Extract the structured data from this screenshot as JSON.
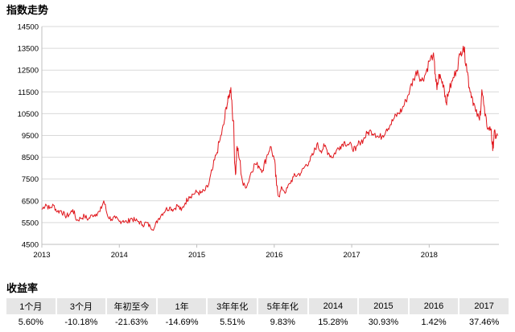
{
  "chart_data": {
    "type": "line",
    "title": "指数走势",
    "xlabel": "",
    "ylabel": "",
    "ylim": [
      4500,
      14500
    ],
    "yticks": [
      4500,
      5500,
      6500,
      7500,
      8500,
      9500,
      10500,
      11500,
      12500,
      13500,
      14500
    ],
    "xlim": [
      2013.0,
      2018.9
    ],
    "xticks": [
      "2013",
      "2014",
      "2015",
      "2016",
      "2017",
      "2018"
    ],
    "line_color": "#e0161c",
    "grid": true,
    "series": [
      {
        "points": [
          [
            2013.0,
            6100
          ],
          [
            2013.05,
            6350
          ],
          [
            2013.1,
            6150
          ],
          [
            2013.15,
            6300
          ],
          [
            2013.2,
            6000
          ],
          [
            2013.25,
            6050
          ],
          [
            2013.3,
            5800
          ],
          [
            2013.35,
            5850
          ],
          [
            2013.4,
            6100
          ],
          [
            2013.45,
            5600
          ],
          [
            2013.5,
            5700
          ],
          [
            2013.55,
            5800
          ],
          [
            2013.6,
            5650
          ],
          [
            2013.65,
            5850
          ],
          [
            2013.7,
            5900
          ],
          [
            2013.75,
            6000
          ],
          [
            2013.8,
            6500
          ],
          [
            2013.85,
            5800
          ],
          [
            2013.9,
            5650
          ],
          [
            2013.95,
            5700
          ],
          [
            2014.0,
            5550
          ],
          [
            2014.05,
            5600
          ],
          [
            2014.1,
            5500
          ],
          [
            2014.15,
            5700
          ],
          [
            2014.2,
            5600
          ],
          [
            2014.25,
            5550
          ],
          [
            2014.3,
            5400
          ],
          [
            2014.35,
            5500
          ],
          [
            2014.4,
            5300
          ],
          [
            2014.45,
            5250
          ],
          [
            2014.5,
            5650
          ],
          [
            2014.55,
            5900
          ],
          [
            2014.6,
            6100
          ],
          [
            2014.65,
            6200
          ],
          [
            2014.7,
            6100
          ],
          [
            2014.75,
            6300
          ],
          [
            2014.8,
            6050
          ],
          [
            2014.85,
            6400
          ],
          [
            2014.9,
            6700
          ],
          [
            2014.95,
            6800
          ],
          [
            2015.0,
            6900
          ],
          [
            2015.05,
            6850
          ],
          [
            2015.1,
            6950
          ],
          [
            2015.15,
            7200
          ],
          [
            2015.2,
            7900
          ],
          [
            2015.25,
            8600
          ],
          [
            2015.3,
            9300
          ],
          [
            2015.35,
            10000
          ],
          [
            2015.38,
            10800
          ],
          [
            2015.41,
            11200
          ],
          [
            2015.44,
            11700
          ],
          [
            2015.47,
            10200
          ],
          [
            2015.5,
            7700
          ],
          [
            2015.52,
            9000
          ],
          [
            2015.55,
            8400
          ],
          [
            2015.6,
            7200
          ],
          [
            2015.65,
            7200
          ],
          [
            2015.7,
            7800
          ],
          [
            2015.75,
            8200
          ],
          [
            2015.8,
            8100
          ],
          [
            2015.85,
            7900
          ],
          [
            2015.9,
            8500
          ],
          [
            2015.95,
            9000
          ],
          [
            2016.0,
            8400
          ],
          [
            2016.03,
            7200
          ],
          [
            2016.06,
            6700
          ],
          [
            2016.1,
            7100
          ],
          [
            2016.15,
            6900
          ],
          [
            2016.2,
            7300
          ],
          [
            2016.25,
            7600
          ],
          [
            2016.3,
            7700
          ],
          [
            2016.35,
            7800
          ],
          [
            2016.4,
            8100
          ],
          [
            2016.45,
            8300
          ],
          [
            2016.5,
            8600
          ],
          [
            2016.55,
            9100
          ],
          [
            2016.6,
            8800
          ],
          [
            2016.65,
            9000
          ],
          [
            2016.7,
            8700
          ],
          [
            2016.75,
            8500
          ],
          [
            2016.8,
            8800
          ],
          [
            2016.85,
            9000
          ],
          [
            2016.9,
            9200
          ],
          [
            2016.95,
            9100
          ],
          [
            2017.0,
            9000
          ],
          [
            2017.05,
            8800
          ],
          [
            2017.1,
            9200
          ],
          [
            2017.15,
            9300
          ],
          [
            2017.2,
            9600
          ],
          [
            2017.25,
            9700
          ],
          [
            2017.3,
            9600
          ],
          [
            2017.35,
            9400
          ],
          [
            2017.4,
            9500
          ],
          [
            2017.45,
            9800
          ],
          [
            2017.5,
            10000
          ],
          [
            2017.55,
            10300
          ],
          [
            2017.6,
            10500
          ],
          [
            2017.65,
            10700
          ],
          [
            2017.7,
            11100
          ],
          [
            2017.75,
            11600
          ],
          [
            2017.8,
            12100
          ],
          [
            2017.85,
            12500
          ],
          [
            2017.9,
            12000
          ],
          [
            2017.95,
            12300
          ],
          [
            2018.0,
            12900
          ],
          [
            2018.05,
            13200
          ],
          [
            2018.08,
            12300
          ],
          [
            2018.1,
            11600
          ],
          [
            2018.13,
            12300
          ],
          [
            2018.16,
            12000
          ],
          [
            2018.19,
            11800
          ],
          [
            2018.22,
            11000
          ],
          [
            2018.25,
            11500
          ],
          [
            2018.3,
            12000
          ],
          [
            2018.35,
            12500
          ],
          [
            2018.4,
            13200
          ],
          [
            2018.44,
            13600
          ],
          [
            2018.48,
            12800
          ],
          [
            2018.52,
            11700
          ],
          [
            2018.56,
            11200
          ],
          [
            2018.6,
            10600
          ],
          [
            2018.65,
            10200
          ],
          [
            2018.68,
            11600
          ],
          [
            2018.72,
            10400
          ],
          [
            2018.76,
            9800
          ],
          [
            2018.8,
            9800
          ],
          [
            2018.82,
            8800
          ],
          [
            2018.84,
            9700
          ],
          [
            2018.86,
            9400
          ],
          [
            2018.88,
            9500
          ]
        ]
      }
    ]
  },
  "returns": {
    "title": "收益率",
    "headers": [
      "1个月",
      "3个月",
      "年初至今",
      "1年",
      "3年年化",
      "5年年化",
      "2014",
      "2015",
      "2016",
      "2017"
    ],
    "values": [
      "5.60%",
      "-10.18%",
      "-21.63%",
      "-14.69%",
      "5.51%",
      "9.83%",
      "15.28%",
      "30.93%",
      "1.42%",
      "37.46%"
    ]
  }
}
